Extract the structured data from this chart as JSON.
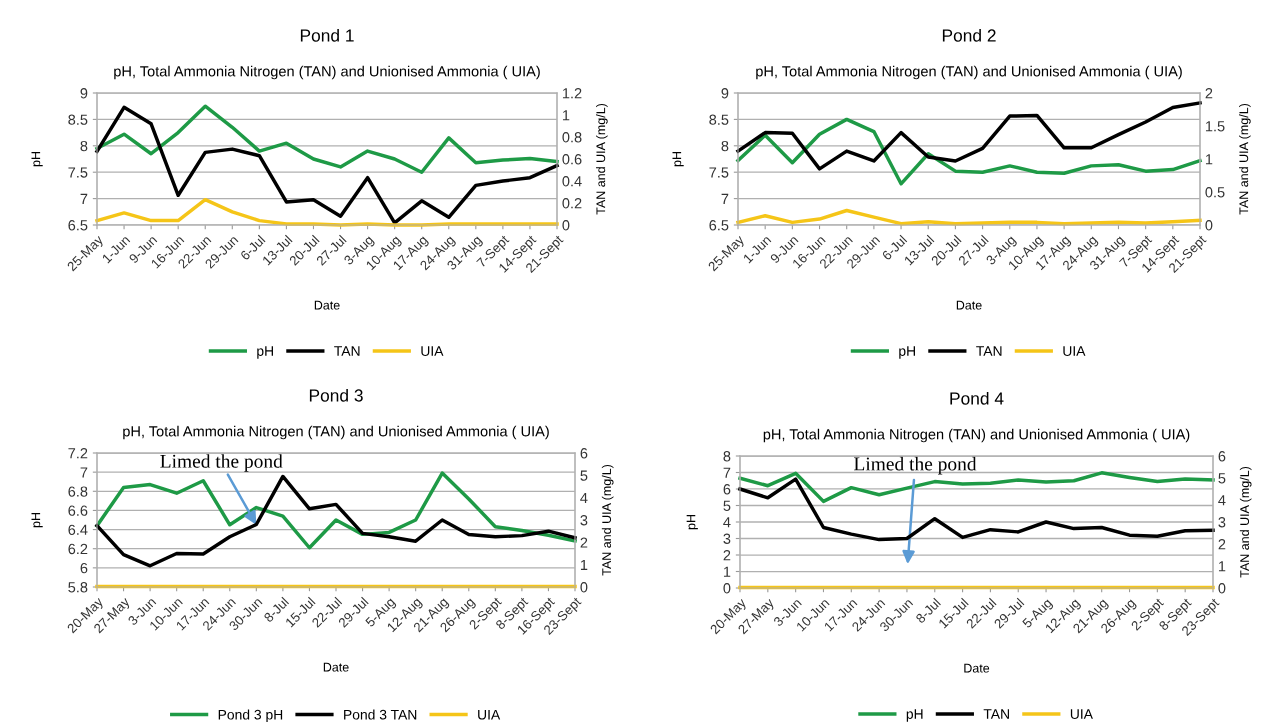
{
  "chart_data": [
    {
      "type": "line",
      "title": "Pond 1",
      "subtitle": "pH, Total Ammonia Nitrogen (TAN) and Unionised Ammonia ( UIA)",
      "xlabel": "Date",
      "ylabel": "pH",
      "y2label": "TAN and UIA (mg/L)",
      "categories": [
        "25-May",
        "1-Jun",
        "9-Jun",
        "16-Jun",
        "22-Jun",
        "29-Jun",
        "6-Jul",
        "13-Jul",
        "20-Jul",
        "27-Jul",
        "3-Aug",
        "10-Aug",
        "17-Aug",
        "24-Aug",
        "31-Aug",
        "7-Sept",
        "14-Sept",
        "21-Sept"
      ],
      "series": [
        {
          "name": "pH",
          "color": "#1e9a46",
          "values": [
            7.95,
            8.22,
            7.85,
            8.25,
            8.75,
            8.35,
            7.9,
            8.05,
            7.75,
            7.6,
            7.9,
            7.75,
            7.5,
            8.15,
            7.68,
            7.73,
            7.76,
            7.7
          ]
        },
        {
          "name": "TAN",
          "color": "#000000",
          "axis": "y2",
          "values": [
            0.67,
            1.07,
            0.92,
            0.27,
            0.66,
            0.69,
            0.63,
            0.21,
            0.23,
            0.08,
            0.43,
            0.02,
            0.22,
            0.07,
            0.36,
            0.4,
            0.43,
            0.54
          ]
        },
        {
          "name": "UIA",
          "color": "#f5c518",
          "axis": "y2",
          "values": [
            0.04,
            0.11,
            0.04,
            0.04,
            0.23,
            0.12,
            0.04,
            0.01,
            0.01,
            0.0,
            0.01,
            0.0,
            0.0,
            0.01,
            0.01,
            0.01,
            0.01,
            0.01
          ]
        }
      ],
      "ylim": [
        6.5,
        9
      ],
      "yticks": [
        6.5,
        7,
        7.5,
        8,
        8.5,
        9
      ],
      "y2lim": [
        0,
        1.2
      ],
      "y2ticks": [
        0,
        0.2,
        0.4,
        0.6,
        0.8,
        1,
        1.2
      ],
      "grid": "y",
      "legend": "bottom"
    },
    {
      "type": "line",
      "title": "Pond 2",
      "subtitle": "pH, Total Ammonia Nitrogen (TAN) and Unionised Ammonia ( UIA)",
      "xlabel": "Date",
      "ylabel": "pH",
      "y2label": "TAN and UIA (mg/L)",
      "categories": [
        "25-May",
        "1-Jun",
        "9-Jun",
        "16-Jun",
        "22-Jun",
        "29-Jun",
        "6-Jul",
        "13-Jul",
        "20-Jul",
        "27-Jul",
        "3-Aug",
        "10-Aug",
        "17-Aug",
        "24-Aug",
        "31-Aug",
        "7-Sept",
        "14-Sept",
        "21-Sept"
      ],
      "series": [
        {
          "name": "pH",
          "color": "#1e9a46",
          "values": [
            7.72,
            8.2,
            7.68,
            8.22,
            8.5,
            8.27,
            7.28,
            7.85,
            7.52,
            7.5,
            7.62,
            7.5,
            7.48,
            7.62,
            7.64,
            7.52,
            7.55,
            7.72
          ]
        },
        {
          "name": "TAN",
          "color": "#000000",
          "axis": "y2",
          "values": [
            1.12,
            1.4,
            1.39,
            0.85,
            1.12,
            0.97,
            1.4,
            1.03,
            0.97,
            1.16,
            1.65,
            1.66,
            1.17,
            1.17,
            1.37,
            1.56,
            1.78,
            1.85
          ]
        },
        {
          "name": "UIA",
          "color": "#f5c518",
          "axis": "y2",
          "values": [
            0.04,
            0.14,
            0.04,
            0.09,
            0.22,
            0.12,
            0.02,
            0.05,
            0.02,
            0.03,
            0.04,
            0.04,
            0.02,
            0.03,
            0.04,
            0.03,
            0.05,
            0.07
          ]
        }
      ],
      "ylim": [
        6.5,
        9
      ],
      "yticks": [
        6.5,
        7,
        7.5,
        8,
        8.5,
        9
      ],
      "y2lim": [
        0,
        2
      ],
      "y2ticks": [
        0,
        0.5,
        1,
        1.5,
        2
      ],
      "grid": "y",
      "legend": "bottom"
    },
    {
      "type": "line",
      "title": "Pond 3",
      "subtitle": "pH, Total Ammonia Nitrogen (TAN) and Unionised Ammonia ( UIA)",
      "xlabel": "Date",
      "ylabel": "pH",
      "y2label": "TAN and UIA (mg/L)",
      "categories": [
        "20-May",
        "27-May",
        "3-Jun",
        "10-Jun",
        "17-Jun",
        "24-Jun",
        "30-Jun",
        "8-Jul",
        "15-Jul",
        "22-Jul",
        "29-Jul",
        "5-Aug",
        "12-Aug",
        "21-Aug",
        "26-Aug",
        "2-Sept",
        "8-Sept",
        "16-Sept",
        "23-Sept"
      ],
      "series": [
        {
          "name": "Pond 3 pH",
          "color": "#1e9a46",
          "values": [
            6.44,
            6.84,
            6.87,
            6.78,
            6.91,
            6.45,
            6.63,
            6.54,
            6.21,
            6.5,
            6.35,
            6.37,
            6.5,
            6.99,
            6.72,
            6.43,
            6.39,
            6.34,
            6.28
          ]
        },
        {
          "name": "Pond 3 TAN",
          "color": "#000000",
          "axis": "y2",
          "values": [
            2.75,
            1.45,
            0.95,
            1.5,
            1.48,
            2.25,
            2.8,
            4.95,
            3.5,
            3.7,
            2.4,
            2.25,
            2.05,
            3.0,
            2.35,
            2.25,
            2.3,
            2.5,
            2.2
          ]
        },
        {
          "name": "UIA",
          "color": "#f5c518",
          "axis": "y2",
          "values": [
            0.02,
            0.02,
            0.02,
            0.02,
            0.02,
            0.02,
            0.02,
            0.02,
            0.02,
            0.02,
            0.02,
            0.02,
            0.02,
            0.02,
            0.02,
            0.02,
            0.02,
            0.02,
            0.02
          ]
        }
      ],
      "ylim": [
        5.8,
        7.2
      ],
      "yticks": [
        5.8,
        6,
        6.2,
        6.4,
        6.6,
        6.8,
        7,
        7.2
      ],
      "y2lim": [
        0,
        6
      ],
      "y2ticks": [
        0,
        1,
        2,
        3,
        4,
        5,
        6
      ],
      "grid": "y",
      "legend": "bottom",
      "annotations": [
        {
          "text": "Limed the pond",
          "x": "30-Jun",
          "y": 6.45
        }
      ]
    },
    {
      "type": "line",
      "title": "Pond 4",
      "subtitle": "pH, Total Ammonia Nitrogen (TAN) and Unionised Ammonia ( UIA)",
      "xlabel": "Date",
      "ylabel": "pH",
      "y2label": "TAN and UIA (mg/L)",
      "categories": [
        "20-May",
        "27-May",
        "3-Jun",
        "10-Jun",
        "17-Jun",
        "24-Jun",
        "30-Jun",
        "8-Jul",
        "15-Jul",
        "22-Jul",
        "29-Jul",
        "5-Aug",
        "12-Aug",
        "21-Aug",
        "26-Aug",
        "2-Sept",
        "8-Sept",
        "23-Sept"
      ],
      "series": [
        {
          "name": "pH",
          "color": "#1e9a46",
          "values": [
            6.65,
            6.2,
            6.95,
            5.25,
            6.08,
            5.65,
            6.05,
            6.45,
            6.3,
            6.35,
            6.55,
            6.42,
            6.5,
            6.98,
            6.7,
            6.45,
            6.6,
            6.55
          ]
        },
        {
          "name": "TAN",
          "color": "#000000",
          "axis": "y2",
          "values": [
            4.5,
            4.1,
            4.95,
            2.75,
            2.45,
            2.2,
            2.25,
            3.15,
            2.3,
            2.65,
            2.55,
            3.0,
            2.7,
            2.75,
            2.4,
            2.35,
            2.6,
            2.62
          ]
        },
        {
          "name": "UIA",
          "color": "#f5c518",
          "axis": "y2",
          "values": [
            0.02,
            0.02,
            0.02,
            0.02,
            0.02,
            0.02,
            0.02,
            0.02,
            0.02,
            0.02,
            0.02,
            0.02,
            0.02,
            0.02,
            0.02,
            0.02,
            0.02,
            0.02
          ]
        }
      ],
      "ylim": [
        0,
        8
      ],
      "yticks": [
        0,
        1,
        2,
        3,
        4,
        5,
        6,
        7,
        8
      ],
      "y2lim": [
        0,
        6
      ],
      "y2ticks": [
        0,
        1,
        2,
        3,
        4,
        5,
        6
      ],
      "grid": "y",
      "legend": "bottom",
      "annotations": [
        "Limed the pond"
      ]
    }
  ]
}
